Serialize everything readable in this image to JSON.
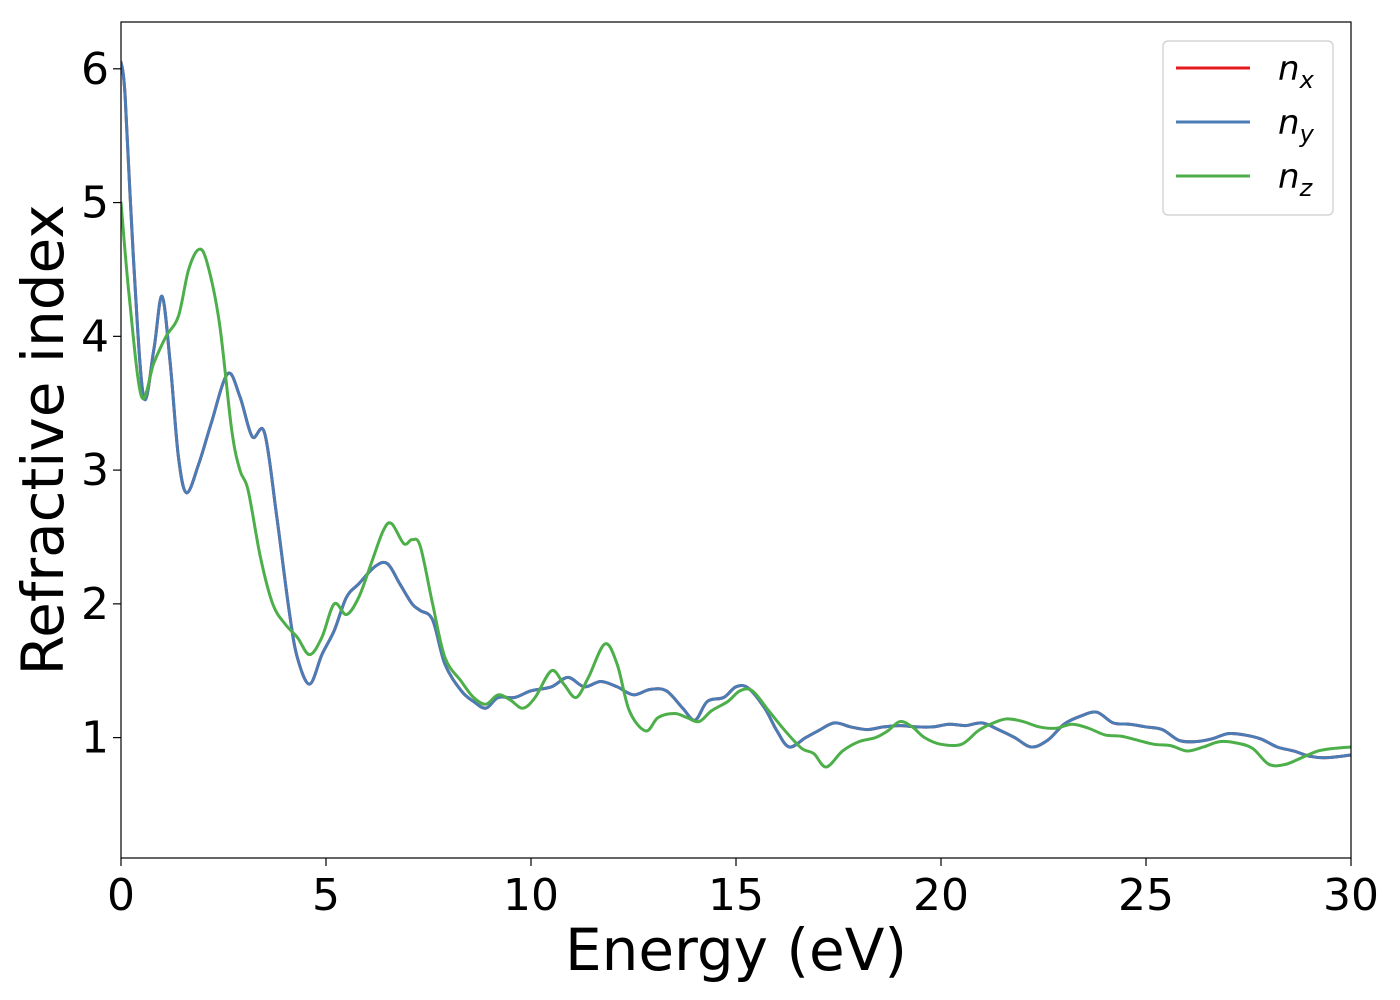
{
  "chart_data": {
    "type": "line",
    "xlabel": "Energy (eV)",
    "ylabel": "Refractive index",
    "xlim": [
      0,
      30
    ],
    "ylim": [
      0.1,
      6.35
    ],
    "xticks": [
      "0",
      "5",
      "10",
      "15",
      "20",
      "25",
      "30"
    ],
    "xtick_values": [
      0,
      5,
      10,
      15,
      20,
      25,
      30
    ],
    "yticks": [
      "1",
      "2",
      "3",
      "4",
      "5",
      "6"
    ],
    "ytick_values": [
      1,
      2,
      3,
      4,
      5,
      6
    ],
    "grid": false,
    "legend_position": "top-right",
    "series": [
      {
        "name": "n",
        "sub": "x",
        "color": "#e41a1c",
        "x": [
          0,
          0.1,
          0.3,
          0.55,
          0.8,
          1.0,
          1.2,
          1.4,
          1.6,
          1.9,
          2.2,
          2.6,
          2.9,
          3.2,
          3.5,
          3.8,
          4.1,
          4.3,
          4.6,
          4.9,
          5.2,
          5.5,
          5.8,
          6.2,
          6.5,
          6.8,
          7.1,
          7.3,
          7.6,
          7.9,
          8.3,
          8.6,
          8.9,
          9.2,
          9.6,
          10.0,
          10.5,
          10.9,
          11.3,
          11.7,
          12.1,
          12.5,
          12.9,
          13.3,
          13.7,
          14.0,
          14.3,
          14.7,
          15.0,
          15.3,
          15.7,
          16.0,
          16.3,
          16.7,
          17.0,
          17.4,
          17.8,
          18.2,
          18.6,
          19.0,
          19.4,
          19.8,
          20.2,
          20.6,
          21.0,
          21.4,
          21.8,
          22.2,
          22.6,
          23.0,
          23.4,
          23.8,
          24.2,
          24.6,
          25.0,
          25.4,
          25.8,
          26.2,
          26.6,
          27.0,
          27.4,
          27.8,
          28.2,
          28.6,
          29.0,
          29.4,
          30.0
        ],
        "y": [
          6.05,
          5.8,
          4.6,
          3.55,
          3.9,
          4.3,
          3.8,
          3.1,
          2.83,
          3.05,
          3.35,
          3.72,
          3.55,
          3.25,
          3.28,
          2.65,
          1.95,
          1.6,
          1.4,
          1.62,
          1.8,
          2.05,
          2.15,
          2.28,
          2.3,
          2.15,
          2.0,
          1.95,
          1.88,
          1.55,
          1.35,
          1.27,
          1.22,
          1.3,
          1.3,
          1.35,
          1.38,
          1.45,
          1.38,
          1.42,
          1.38,
          1.32,
          1.36,
          1.35,
          1.22,
          1.13,
          1.27,
          1.3,
          1.38,
          1.37,
          1.22,
          1.05,
          0.93,
          1.0,
          1.05,
          1.11,
          1.08,
          1.06,
          1.08,
          1.09,
          1.08,
          1.08,
          1.1,
          1.09,
          1.11,
          1.06,
          1.0,
          0.93,
          0.98,
          1.1,
          1.16,
          1.19,
          1.11,
          1.1,
          1.08,
          1.06,
          0.98,
          0.97,
          0.99,
          1.03,
          1.02,
          0.99,
          0.93,
          0.9,
          0.86,
          0.85,
          0.87
        ]
      },
      {
        "name": "n",
        "sub": "y",
        "color": "#4a7db5",
        "x": [
          0,
          0.1,
          0.3,
          0.55,
          0.8,
          1.0,
          1.2,
          1.4,
          1.6,
          1.9,
          2.2,
          2.6,
          2.9,
          3.2,
          3.5,
          3.8,
          4.1,
          4.3,
          4.6,
          4.9,
          5.2,
          5.5,
          5.8,
          6.2,
          6.5,
          6.8,
          7.1,
          7.3,
          7.6,
          7.9,
          8.3,
          8.6,
          8.9,
          9.2,
          9.6,
          10.0,
          10.5,
          10.9,
          11.3,
          11.7,
          12.1,
          12.5,
          12.9,
          13.3,
          13.7,
          14.0,
          14.3,
          14.7,
          15.0,
          15.3,
          15.7,
          16.0,
          16.3,
          16.7,
          17.0,
          17.4,
          17.8,
          18.2,
          18.6,
          19.0,
          19.4,
          19.8,
          20.2,
          20.6,
          21.0,
          21.4,
          21.8,
          22.2,
          22.6,
          23.0,
          23.4,
          23.8,
          24.2,
          24.6,
          25.0,
          25.4,
          25.8,
          26.2,
          26.6,
          27.0,
          27.4,
          27.8,
          28.2,
          28.6,
          29.0,
          29.4,
          30.0
        ],
        "y": [
          6.05,
          5.8,
          4.6,
          3.55,
          3.9,
          4.3,
          3.8,
          3.1,
          2.83,
          3.05,
          3.35,
          3.72,
          3.55,
          3.25,
          3.28,
          2.65,
          1.95,
          1.6,
          1.4,
          1.62,
          1.8,
          2.05,
          2.15,
          2.28,
          2.3,
          2.15,
          2.0,
          1.95,
          1.88,
          1.55,
          1.35,
          1.27,
          1.22,
          1.3,
          1.3,
          1.35,
          1.38,
          1.45,
          1.38,
          1.42,
          1.38,
          1.32,
          1.36,
          1.35,
          1.22,
          1.13,
          1.27,
          1.3,
          1.38,
          1.37,
          1.22,
          1.05,
          0.93,
          1.0,
          1.05,
          1.11,
          1.08,
          1.06,
          1.08,
          1.09,
          1.08,
          1.08,
          1.1,
          1.09,
          1.11,
          1.06,
          1.0,
          0.93,
          0.98,
          1.1,
          1.16,
          1.19,
          1.11,
          1.1,
          1.08,
          1.06,
          0.98,
          0.97,
          0.99,
          1.03,
          1.02,
          0.99,
          0.93,
          0.9,
          0.86,
          0.85,
          0.87
        ]
      },
      {
        "name": "n",
        "sub": "z",
        "color": "#4daf4a",
        "x": [
          0,
          0.2,
          0.5,
          0.8,
          1.1,
          1.4,
          1.65,
          1.9,
          2.1,
          2.4,
          2.7,
          2.9,
          3.1,
          3.4,
          3.7,
          4.0,
          4.3,
          4.6,
          4.9,
          5.2,
          5.5,
          5.8,
          6.1,
          6.4,
          6.6,
          6.9,
          7.1,
          7.3,
          7.6,
          7.9,
          8.3,
          8.6,
          8.9,
          9.2,
          9.5,
          9.8,
          10.1,
          10.5,
          10.8,
          11.1,
          11.4,
          11.8,
          12.1,
          12.4,
          12.8,
          13.1,
          13.5,
          13.8,
          14.1,
          14.4,
          14.8,
          15.1,
          15.4,
          15.8,
          16.2,
          16.6,
          16.9,
          17.2,
          17.6,
          18.0,
          18.4,
          18.7,
          19.0,
          19.3,
          19.6,
          20.0,
          20.5,
          20.9,
          21.2,
          21.6,
          22.0,
          22.4,
          22.8,
          23.2,
          23.6,
          24.0,
          24.4,
          24.8,
          25.2,
          25.6,
          26.0,
          26.4,
          26.8,
          27.2,
          27.6,
          28.0,
          28.4,
          28.8,
          29.2,
          29.6,
          30.0
        ],
        "y": [
          5.0,
          4.3,
          3.55,
          3.8,
          4.0,
          4.15,
          4.5,
          4.65,
          4.55,
          4.1,
          3.3,
          3.0,
          2.85,
          2.35,
          2.0,
          1.85,
          1.75,
          1.62,
          1.75,
          2.0,
          1.92,
          2.05,
          2.3,
          2.55,
          2.6,
          2.45,
          2.48,
          2.43,
          2.0,
          1.6,
          1.42,
          1.3,
          1.25,
          1.32,
          1.28,
          1.22,
          1.3,
          1.5,
          1.4,
          1.3,
          1.45,
          1.7,
          1.55,
          1.2,
          1.05,
          1.15,
          1.18,
          1.15,
          1.12,
          1.2,
          1.27,
          1.35,
          1.35,
          1.2,
          1.05,
          0.92,
          0.88,
          0.78,
          0.9,
          0.97,
          1.0,
          1.05,
          1.12,
          1.08,
          1.0,
          0.95,
          0.95,
          1.05,
          1.1,
          1.14,
          1.12,
          1.08,
          1.07,
          1.1,
          1.07,
          1.02,
          1.01,
          0.98,
          0.95,
          0.94,
          0.9,
          0.93,
          0.97,
          0.96,
          0.92,
          0.8,
          0.8,
          0.85,
          0.9,
          0.92,
          0.93
        ]
      }
    ]
  }
}
